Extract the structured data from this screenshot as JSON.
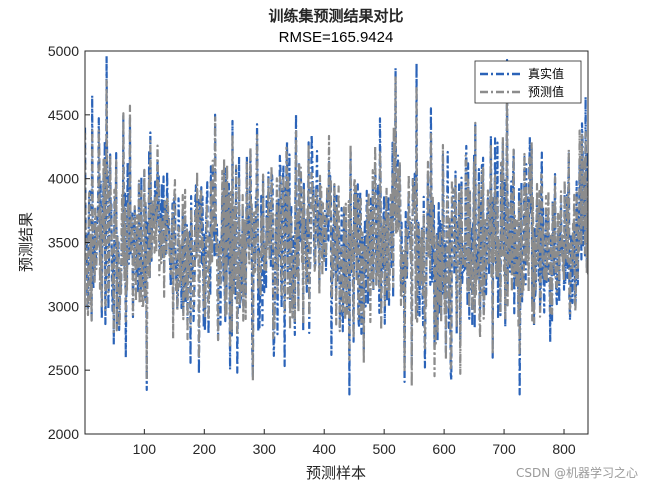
{
  "chart_data": {
    "type": "line",
    "title": "训练集预测结果对比",
    "subtitle": "RMSE=165.9424",
    "xlabel": "预测样本",
    "ylabel": "预测结果",
    "xlim": [
      1,
      840
    ],
    "ylim": [
      2000,
      5000
    ],
    "xticks": [
      "100",
      "200",
      "300",
      "400",
      "500",
      "600",
      "700",
      "800"
    ],
    "yticks": [
      "2000",
      "2500",
      "3000",
      "3500",
      "4000",
      "4500",
      "5000"
    ],
    "grid": false,
    "legend_position": "top-right",
    "series": [
      {
        "name": "真实值",
        "color": "#2b63b8",
        "style": "dash-dot",
        "mean": 3500,
        "spread": 420,
        "min": 2310,
        "max": 4960,
        "values_sample": [
          4400,
          3000,
          3900,
          4650,
          3200,
          3700,
          4100,
          2900,
          3600,
          4960,
          3300,
          3800,
          2700,
          4200,
          3500,
          3100,
          4500,
          2600,
          3900,
          3400
        ]
      },
      {
        "name": "预测值",
        "color": "#8c8c8c",
        "style": "dash-dot",
        "mean": 3500,
        "spread": 390,
        "min": 2360,
        "max": 4870,
        "values_sample": [
          4300,
          3100,
          3850,
          4550,
          3250,
          3650,
          4050,
          2950,
          3620,
          4850,
          3350,
          3750,
          2750,
          4150,
          3480,
          3150,
          4400,
          2650,
          3880,
          3420
        ]
      }
    ]
  },
  "watermark": "CSDN @机器学习之心"
}
